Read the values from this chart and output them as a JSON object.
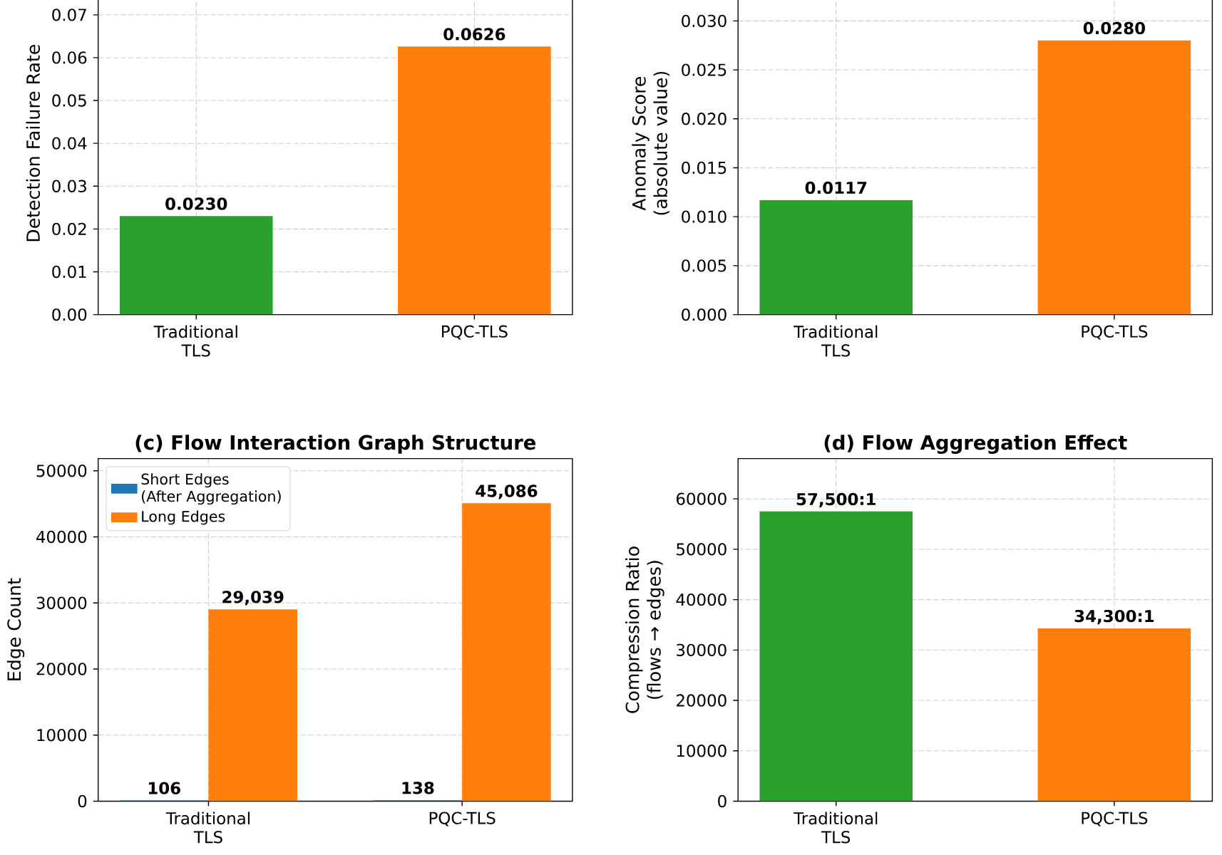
{
  "chart_data": [
    {
      "type": "bar",
      "categories": [
        "Traditional\nTLS",
        "PQC-TLS"
      ],
      "values": [
        0.023,
        0.0626
      ],
      "colors": [
        "#2ca02c",
        "#ff7f0e"
      ],
      "value_labels": [
        "0.0230",
        "0.0626"
      ],
      "ylabel": "Detection Failure Rate",
      "ylim": [
        0,
        0.08
      ],
      "yticks": [
        {
          "value": 0,
          "label": "0.00"
        },
        0.01,
        0.02,
        0.03,
        0.04,
        0.05,
        0.06,
        0.07
      ],
      "grid": true
    },
    {
      "type": "bar",
      "categories": [
        "Traditional\nTLS",
        "PQC-TLS"
      ],
      "values": [
        0.0117,
        0.028
      ],
      "colors": [
        "#2ca02c",
        "#ff7f0e"
      ],
      "value_labels": [
        "0.0117",
        "0.0280"
      ],
      "ylabel": "Anomaly Score\n(absolute value)",
      "ylim": [
        0,
        0.035
      ],
      "yticks": [
        {
          "value": 0,
          "label": "0.000"
        },
        0.005,
        {
          "value": 0.01,
          "label": "0.010"
        },
        0.015,
        {
          "value": 0.02,
          "label": "0.020"
        },
        0.025,
        {
          "value": 0.03,
          "label": "0.030"
        }
      ],
      "grid": true
    },
    {
      "type": "bar",
      "title": "(c) Flow Interaction Graph Structure",
      "categories": [
        "Traditional\nTLS",
        "PQC-TLS"
      ],
      "series": [
        {
          "name": "Short Edges\n(After Aggregation)",
          "color": "#1f77b4",
          "values": [
            106,
            138
          ],
          "value_labels": [
            "106",
            "138"
          ]
        },
        {
          "name": "Long Edges",
          "color": "#ff7f0e",
          "values": [
            29039,
            45086
          ],
          "value_labels": [
            "29,039",
            "45,086"
          ]
        }
      ],
      "ylabel": "Edge Count",
      "ylim": [
        0,
        51850
      ],
      "yticks": [
        0,
        10000,
        20000,
        30000,
        40000,
        50000
      ],
      "grid": true,
      "legend": "top left"
    },
    {
      "type": "bar",
      "title": "(d) Flow Aggregation Effect",
      "categories": [
        "Traditional\nTLS",
        "PQC-TLS"
      ],
      "values": [
        57500,
        34300
      ],
      "colors": [
        "#2ca02c",
        "#ff7f0e"
      ],
      "value_labels": [
        "57,500:1",
        "34,300:1"
      ],
      "ylabel": "Compression Ratio\n(flows → edges)",
      "ylim": [
        0,
        68000
      ],
      "yticks": [
        0,
        10000,
        20000,
        30000,
        40000,
        50000,
        60000
      ],
      "grid": true
    }
  ]
}
